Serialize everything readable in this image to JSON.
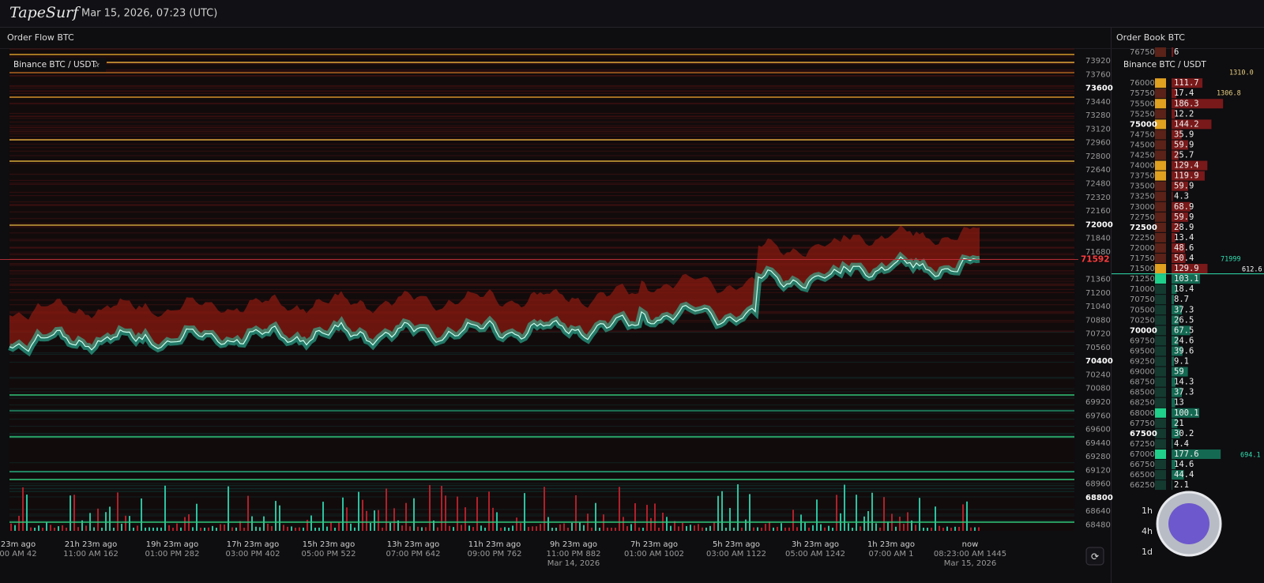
{
  "header": {
    "brand": "TapeSurf",
    "timestamp": "Mar 15, 2026, 07:23 (UTC)"
  },
  "order_flow": {
    "title": "Order Flow BTC",
    "pair": "Binance BTC / USDT",
    "price_axis": [
      73920,
      73760,
      73600,
      73440,
      73280,
      73120,
      72960,
      72800,
      72640,
      72480,
      72320,
      72160,
      72000,
      71840,
      71680,
      71360,
      71200,
      71040,
      70880,
      70720,
      70560,
      70400,
      70240,
      70080,
      69920,
      69760,
      69600,
      69440,
      69280,
      69120,
      68960,
      68800,
      68640,
      68480
    ],
    "current_price": 71592,
    "time_axis": [
      {
        "rel": "23m ago",
        "abs": "00 AM 42"
      },
      {
        "rel": "21h 23m ago",
        "abs": "11:00 AM 162"
      },
      {
        "rel": "19h 23m ago",
        "abs": "01:00 PM 282"
      },
      {
        "rel": "17h 23m ago",
        "abs": "03:00 PM 402"
      },
      {
        "rel": "15h 23m ago",
        "abs": "05:00 PM 522"
      },
      {
        "rel": "13h 23m ago",
        "abs": "07:00 PM 642"
      },
      {
        "rel": "11h 23m ago",
        "abs": "09:00 PM 762"
      },
      {
        "rel": "9h 23m ago",
        "abs": "11:00 PM 882",
        "date": "Mar 14, 2026"
      },
      {
        "rel": "7h 23m ago",
        "abs": "01:00 AM 1002"
      },
      {
        "rel": "5h 23m ago",
        "abs": "03:00 AM 1122"
      },
      {
        "rel": "3h 23m ago",
        "abs": "05:00 AM 1242"
      },
      {
        "rel": "1h 23m ago",
        "abs": "07:00 AM 1"
      },
      {
        "rel": "now",
        "abs": "08:23:00 AM 1445",
        "date": "Mar 15, 2026"
      }
    ]
  },
  "order_book": {
    "title": "Order Book BTC",
    "pair": "Binance BTC / USDT",
    "asks": [
      {
        "price": 76750,
        "size": 6.0
      },
      {
        "price": 76000,
        "size": 111.7
      },
      {
        "price": 75750,
        "size": 17.4
      },
      {
        "price": 75500,
        "size": 186.3
      },
      {
        "price": 75250,
        "size": 12.2
      },
      {
        "price": 75000,
        "size": 144.2
      },
      {
        "price": 74750,
        "size": 35.9
      },
      {
        "price": 74500,
        "size": 59.9
      },
      {
        "price": 74250,
        "size": 25.7
      },
      {
        "price": 74000,
        "size": 129.4
      },
      {
        "price": 73750,
        "size": 119.9
      },
      {
        "price": 73500,
        "size": 59.9
      },
      {
        "price": 73250,
        "size": 4.3
      },
      {
        "price": 73000,
        "size": 68.9
      },
      {
        "price": 72750,
        "size": 59.9
      },
      {
        "price": 72500,
        "size": 28.9
      },
      {
        "price": 72250,
        "size": 13.4
      },
      {
        "price": 72000,
        "size": 48.6
      },
      {
        "price": 71750,
        "size": 50.4
      },
      {
        "price": 71500,
        "size": 129.9
      }
    ],
    "bids": [
      {
        "price": 71250,
        "size": 103.1
      },
      {
        "price": 71000,
        "size": 18.4
      },
      {
        "price": 70750,
        "size": 8.7
      },
      {
        "price": 70500,
        "size": 37.3
      },
      {
        "price": 70250,
        "size": 26.5
      },
      {
        "price": 70000,
        "size": 67.5
      },
      {
        "price": 69750,
        "size": 24.6
      },
      {
        "price": 69500,
        "size": 39.6
      },
      {
        "price": 69250,
        "size": 9.1
      },
      {
        "price": 69000,
        "size": 59.0
      },
      {
        "price": 68750,
        "size": 14.3
      },
      {
        "price": 68500,
        "size": 37.3
      },
      {
        "price": 68250,
        "size": 13.0
      },
      {
        "price": 68000,
        "size": 100.1
      },
      {
        "price": 67750,
        "size": 21.0
      },
      {
        "price": 67500,
        "size": 30.2
      },
      {
        "price": 67250,
        "size": 4.4
      },
      {
        "price": 67000,
        "size": 177.6
      },
      {
        "price": 66750,
        "size": 14.6
      },
      {
        "price": 66500,
        "size": 44.4
      },
      {
        "price": 66250,
        "size": 2.1
      }
    ],
    "depth_labels": [
      "1310.0",
      "1306.8",
      "71999",
      "612.6",
      "694.1"
    ]
  },
  "timeframes": [
    "1h",
    "4h",
    "1d"
  ]
}
